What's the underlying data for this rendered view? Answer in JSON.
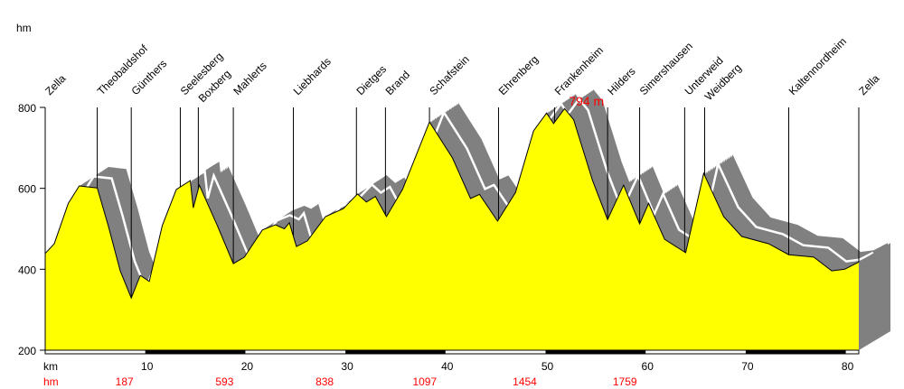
{
  "chart_data": {
    "type": "area",
    "title": "",
    "ylabel": "hm",
    "xlabel": "km",
    "xlim": [
      0,
      81.3
    ],
    "ylim": [
      200,
      800
    ],
    "yticks": [
      200,
      400,
      600,
      800
    ],
    "xticks": [
      10,
      20,
      30,
      40,
      50,
      60,
      70,
      80
    ],
    "profile_km": [
      0,
      0.9,
      2.3,
      3.4,
      5.2,
      6.3,
      7.5,
      8.6,
      9.5,
      10.4,
      11.7,
      13.1,
      14.5,
      14.8,
      15.4,
      17.2,
      18.8,
      19.9,
      21.7,
      23.0,
      23.9,
      24.4,
      25.1,
      26.2,
      28.0,
      29.8,
      31.2,
      32.1,
      33.0,
      34.1,
      35.7,
      38.4,
      40.7,
      42.5,
      43.4,
      45.2,
      47.0,
      48.8,
      50.1,
      50.8,
      51.9,
      52.8,
      54.7,
      56.2,
      57.8,
      59.4,
      60.3,
      61.9,
      64.0,
      65.8,
      67.8,
      69.6,
      72.3,
      74.3,
      76.8,
      78.6,
      79.9,
      81.3
    ],
    "profile_elev": [
      439,
      463,
      563,
      606,
      601,
      508,
      396,
      329,
      385,
      370,
      508,
      597,
      619,
      552,
      608,
      508,
      414,
      430,
      497,
      510,
      500,
      515,
      456,
      470,
      530,
      550,
      586,
      566,
      580,
      530,
      597,
      764,
      675,
      575,
      585,
      519,
      590,
      742,
      786,
      760,
      797,
      770,
      619,
      523,
      608,
      512,
      563,
      474,
      441,
      637,
      530,
      481,
      463,
      436,
      430,
      396,
      400,
      418
    ],
    "places": [
      {
        "name": "Zella",
        "km": 0
      },
      {
        "name": "Theobaldshof",
        "km": 5.2
      },
      {
        "name": "Günthers",
        "km": 8.6
      },
      {
        "name": "Seelesberg",
        "km": 13.5
      },
      {
        "name": "Boxberg",
        "km": 15.3
      },
      {
        "name": "Mahlerts",
        "km": 18.8
      },
      {
        "name": "Liebhards",
        "km": 24.8
      },
      {
        "name": "Dietges",
        "km": 31.1
      },
      {
        "name": "Brand",
        "km": 34.0
      },
      {
        "name": "Schafstein",
        "km": 38.4
      },
      {
        "name": "Ehrenberg",
        "km": 45.3
      },
      {
        "name": "Frankenheim",
        "km": 50.9
      },
      {
        "name": "Hilders",
        "km": 56.2
      },
      {
        "name": "Simershausen",
        "km": 59.4
      },
      {
        "name": "Unterweid",
        "km": 63.9
      },
      {
        "name": "Weidberg",
        "km": 65.9
      },
      {
        "name": "Kaltennordheim",
        "km": 74.3
      },
      {
        "name": "Zella",
        "km": 81.3
      }
    ],
    "max_label": "794 m",
    "max_km": 54.5,
    "km_label": "km",
    "hm_label": "hm",
    "cumulative_climb": [
      {
        "km": 10,
        "value": "187"
      },
      {
        "km": 20,
        "value": "593"
      },
      {
        "km": 30,
        "value": "838"
      },
      {
        "km": 40,
        "value": "1097"
      },
      {
        "km": 50,
        "value": "1454"
      },
      {
        "km": 60,
        "value": "1759"
      }
    ],
    "colors": {
      "fill": "#ffff00",
      "shadow": "#808080",
      "accent": "#ff0000"
    }
  }
}
